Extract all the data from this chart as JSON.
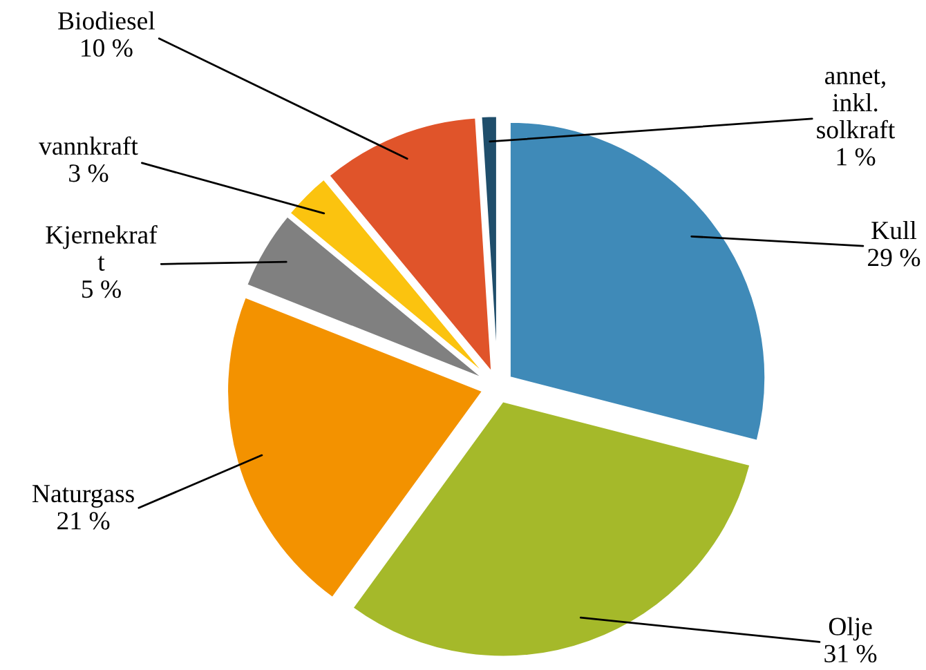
{
  "chart_data": {
    "type": "pie",
    "categories": [
      "Kull",
      "Olje",
      "Naturgass",
      "Kjernekraf\nt",
      "vannkraft",
      "Biodiesel",
      "annet,\ninkl.\nsolkraft"
    ],
    "values": [
      29,
      31,
      21,
      5,
      3,
      10,
      1
    ],
    "value_labels": [
      "29 %",
      "31 %",
      "21 %",
      "5 %",
      "3 %",
      "10 %",
      "1 %"
    ],
    "colors": [
      "#3f8ab8",
      "#a5b92a",
      "#f39200",
      "#808080",
      "#fbc30f",
      "#e0542a",
      "#1f4e6b"
    ],
    "legend": false
  }
}
